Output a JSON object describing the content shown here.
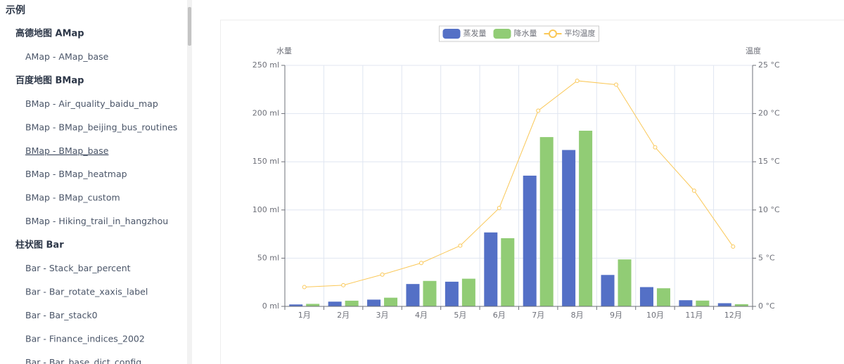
{
  "sidebar": {
    "title": "示例",
    "groups": [
      {
        "label": "高德地图 AMap",
        "items": [
          "AMap - AMap_base"
        ]
      },
      {
        "label": "百度地图 BMap",
        "items": [
          "BMap - Air_quality_baidu_map",
          "BMap - BMap_beijing_bus_routines",
          "BMap - BMap_base",
          "BMap - BMap_heatmap",
          "BMap - BMap_custom",
          "BMap - Hiking_trail_in_hangzhou"
        ]
      },
      {
        "label": "柱状图 Bar",
        "items": [
          "Bar - Stack_bar_percent",
          "Bar - Bar_rotate_xaxis_label",
          "Bar - Bar_stack0",
          "Bar - Finance_indices_2002",
          "Bar - Bar_base_dict_config"
        ]
      }
    ]
  },
  "chart_data": {
    "type": "bar-line",
    "ylabel": "水量",
    "y2label": "温度",
    "categories": [
      "1月",
      "2月",
      "3月",
      "4月",
      "5月",
      "6月",
      "7月",
      "8月",
      "9月",
      "10月",
      "11月",
      "12月"
    ],
    "series": [
      {
        "name": "蒸发量",
        "type": "bar",
        "color": "#5470c6",
        "values": [
          2.0,
          4.9,
          7.0,
          23.2,
          25.6,
          76.7,
          135.6,
          162.2,
          32.6,
          20.0,
          6.4,
          3.3
        ]
      },
      {
        "name": "降水量",
        "type": "bar",
        "color": "#91cc75",
        "values": [
          2.6,
          5.9,
          9.0,
          26.4,
          28.7,
          70.7,
          175.6,
          182.2,
          48.7,
          18.8,
          6.0,
          2.3
        ]
      },
      {
        "name": "平均温度",
        "type": "line",
        "axis": "y2",
        "color": "#fac858",
        "values": [
          2.0,
          2.2,
          3.3,
          4.5,
          6.3,
          10.2,
          20.3,
          23.4,
          23.0,
          16.5,
          12.0,
          6.2
        ]
      }
    ],
    "ylim": [
      0,
      250
    ],
    "yticks": [
      {
        "value": 0,
        "label": "0 ml"
      },
      {
        "value": 50,
        "label": "50 ml"
      },
      {
        "value": 100,
        "label": "100 ml"
      },
      {
        "value": 150,
        "label": "150 ml"
      },
      {
        "value": 200,
        "label": "200 ml"
      },
      {
        "value": 250,
        "label": "250 ml"
      }
    ],
    "y2lim": [
      0,
      25
    ],
    "y2ticks": [
      {
        "value": 0,
        "label": "0 °C"
      },
      {
        "value": 5,
        "label": "5 °C"
      },
      {
        "value": 10,
        "label": "10 °C"
      },
      {
        "value": 15,
        "label": "15 °C"
      },
      {
        "value": 20,
        "label": "20 °C"
      },
      {
        "value": 25,
        "label": "25 °C"
      }
    ],
    "grid": true
  }
}
